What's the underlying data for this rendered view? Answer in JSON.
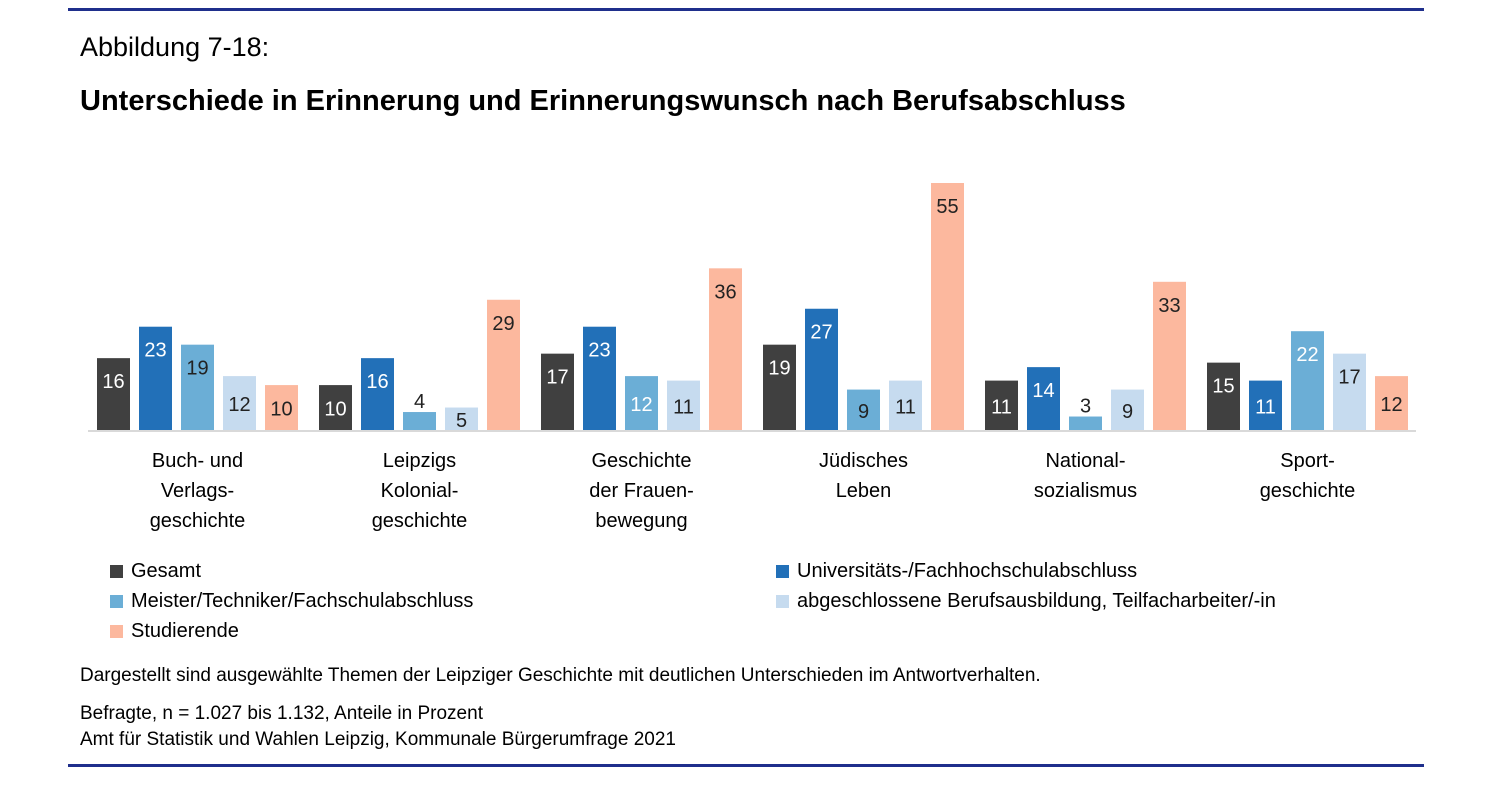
{
  "figure_label": "Abbildung 7-18:",
  "chart_data": {
    "type": "bar",
    "title": "Unterschiede in Erinnerung und Erinnerungswunsch nach Berufsabschluss",
    "categories": [
      [
        "Buch- und",
        "Verlags-",
        "geschichte"
      ],
      [
        "Leipzigs",
        "Kolonial-",
        "geschichte"
      ],
      [
        "Geschichte",
        "der Frauen-",
        "bewegung"
      ],
      [
        "Jüdisches",
        "Leben"
      ],
      [
        "National-",
        "sozialismus"
      ],
      [
        "Sport-",
        "geschichte"
      ]
    ],
    "series": [
      {
        "name": "Gesamt",
        "color": "#404040",
        "values": [
          16,
          10,
          17,
          19,
          11,
          15
        ]
      },
      {
        "name": "Universitäts-/Fachhochschulabschluss",
        "color": "#2270b8",
        "values": [
          23,
          16,
          23,
          27,
          14,
          11
        ]
      },
      {
        "name": "Meister/Techniker/Fachschulabschluss",
        "color": "#6baed6",
        "values": [
          19,
          4,
          12,
          9,
          3,
          22
        ]
      },
      {
        "name": "abgeschlossene Berufsausbildung, Teilfacharbeiter/-in",
        "color": "#c6dbef",
        "values": [
          12,
          5,
          11,
          11,
          9,
          17
        ]
      },
      {
        "name": "Studierende",
        "color": "#fcb89e",
        "values": [
          10,
          29,
          36,
          55,
          33,
          12
        ]
      }
    ],
    "ylim": [
      0,
      55
    ],
    "grid": false,
    "legend_placement": "bottom"
  },
  "notes": [
    "Dargestellt sind ausgewählte Themen der Leipziger Geschichte mit deutlichen Unterschieden im Antwortverhalten.",
    "Befragte, n = 1.027 bis 1.132, Anteile in Prozent",
    "Amt für Statistik und Wahlen Leipzig, Kommunale Bürgerumfrage 2021"
  ]
}
